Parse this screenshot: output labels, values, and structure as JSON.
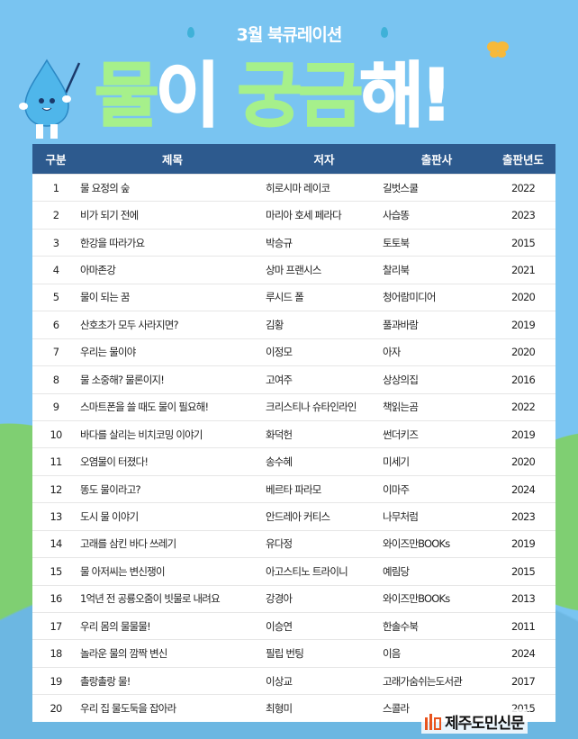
{
  "header": {
    "subtitle": "3월 북큐레이션",
    "title_parts": [
      "물",
      "이",
      " 궁금",
      "해!"
    ]
  },
  "table": {
    "columns": [
      "구분",
      "제목",
      "저자",
      "출판사",
      "출판년도"
    ],
    "rows": [
      [
        "1",
        "물 요정의 숲",
        "히로시마 레이코",
        "길벗스쿨",
        "2022"
      ],
      [
        "2",
        "비가 되기 전에",
        "마리아 호세 페라다",
        "사습똥",
        "2023"
      ],
      [
        "3",
        "한강을 따라가요",
        "박승규",
        "토토북",
        "2015"
      ],
      [
        "4",
        "아마존강",
        "상마 프랜시스",
        "찰리북",
        "2021"
      ],
      [
        "5",
        "물이 되는 꿈",
        "루시드 폴",
        "청어람미디어",
        "2020"
      ],
      [
        "6",
        "산호초가 모두 사라지면?",
        "김황",
        "풀과바람",
        "2019"
      ],
      [
        "7",
        "우리는 물이야",
        "이정모",
        "아자",
        "2020"
      ],
      [
        "8",
        "물 소중해? 물론이지!",
        "고여주",
        "상상의집",
        "2016"
      ],
      [
        "9",
        "스마트폰을 쓸 때도 물이 필요해!",
        "크리스티나 슈타인라인",
        "책읽는곰",
        "2022"
      ],
      [
        "10",
        "바다를 살리는 비치코밍 이야기",
        "화덕헌",
        "썬더키즈",
        "2019"
      ],
      [
        "11",
        "오염물이 터졌다!",
        "송수혜",
        "미세기",
        "2020"
      ],
      [
        "12",
        "똥도 물이라고?",
        "베르타 파라모",
        "이마주",
        "2024"
      ],
      [
        "13",
        "도시 물 이야기",
        "안드레아 커티스",
        "나무처럼",
        "2023"
      ],
      [
        "14",
        "고래를 삼킨 바다 쓰레기",
        "유다정",
        "와이즈만BOOKs",
        "2019"
      ],
      [
        "15",
        "물 아저씨는 변신쟁이",
        "아고스티노 트라이니",
        "예림당",
        "2015"
      ],
      [
        "16",
        "1억년 전 공룡오줌이 빗물로 내려요",
        "강경아",
        "와이즈만BOOKs",
        "2013"
      ],
      [
        "17",
        "우리 몸의 물물물!",
        "이승연",
        "한솔수북",
        "2011"
      ],
      [
        "18",
        "놀라운 물의 깜짝 변신",
        "필립 번팅",
        "이음",
        "2024"
      ],
      [
        "19",
        "촐랑촐랑 물!",
        "이상교",
        "고래가숨쉬는도서관",
        "2017"
      ],
      [
        "20",
        "우리 집 물도둑을 잡아라",
        "최형미",
        "스콜라",
        "2015"
      ]
    ]
  },
  "logo": {
    "text": "제주도민신문"
  },
  "colors": {
    "background": "#79c4f1",
    "header_bg": "#2d5a8e",
    "title_green": "#a6f08b",
    "logo_orange": "#e8541e"
  }
}
